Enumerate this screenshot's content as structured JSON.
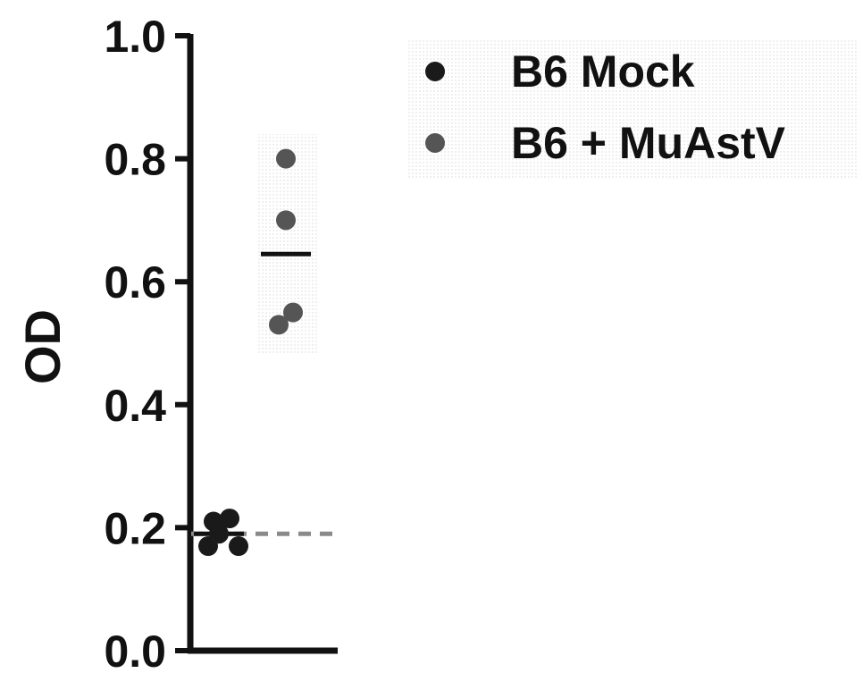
{
  "chart_data": {
    "type": "scatter",
    "ylabel": "OD",
    "xlabel": "",
    "ylim": [
      0.0,
      1.0
    ],
    "yticks": [
      "0.0",
      "0.2",
      "0.4",
      "0.6",
      "0.8",
      "1.0"
    ],
    "legend_position": "top-right",
    "series": [
      {
        "name": "B6 Mock",
        "color": "#1a1a1a",
        "values": [
          0.17,
          0.19,
          0.21,
          0.215,
          0.17
        ],
        "mean": 0.19
      },
      {
        "name": "B6 + MuAstV",
        "color": "#555555",
        "values": [
          0.8,
          0.7,
          0.55,
          0.53
        ],
        "mean": 0.645
      }
    ],
    "reference_line": {
      "value": 0.19,
      "style": "dashed"
    }
  }
}
